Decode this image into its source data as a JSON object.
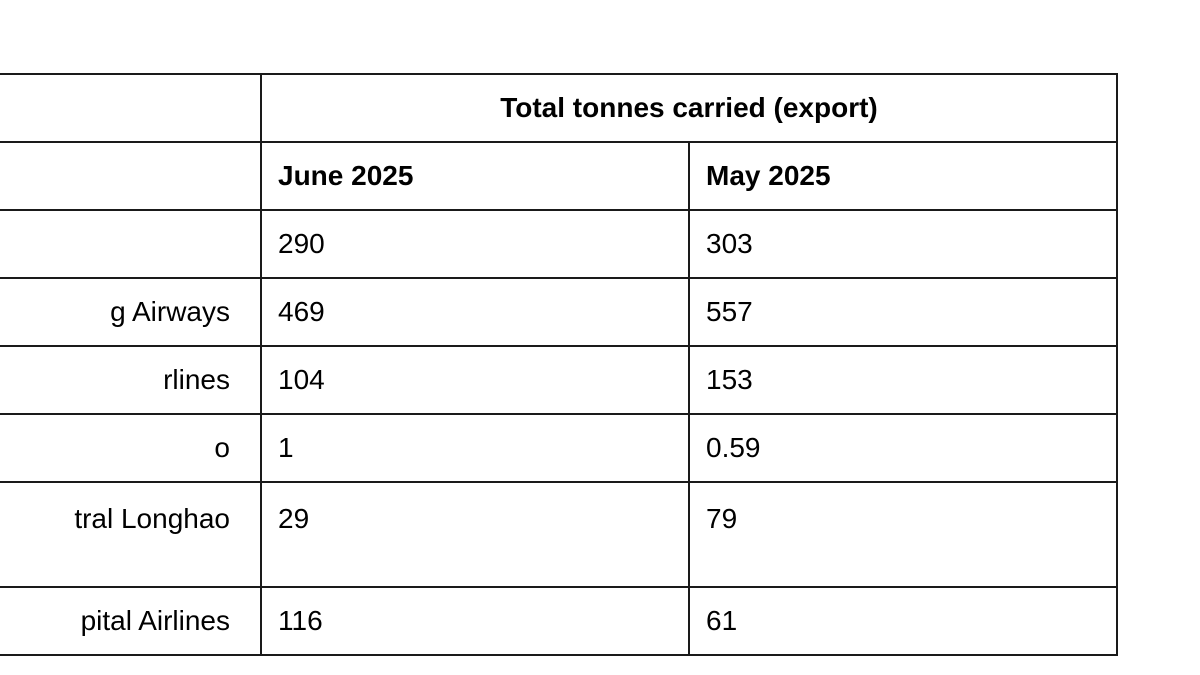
{
  "table": {
    "group_header": "Total tonnes carried (export)",
    "columns": [
      "June 2025",
      "May 2025"
    ],
    "rows": [
      {
        "airline": "",
        "june": "290",
        "may": "303"
      },
      {
        "airline": "g Airways",
        "june": "469",
        "may": "557"
      },
      {
        "airline": "rlines",
        "june": "104",
        "may": "153"
      },
      {
        "airline": "o",
        "june": "1",
        "may": "0.59"
      },
      {
        "airline": "tral Longhao",
        "june": "29",
        "may": "79"
      },
      {
        "airline": "pital Airlines",
        "june": "116",
        "may": "61"
      }
    ]
  }
}
